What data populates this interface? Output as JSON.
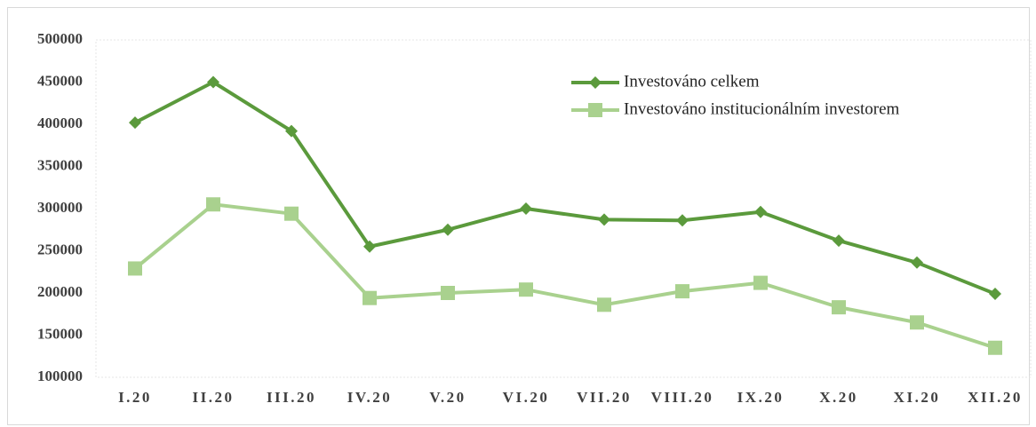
{
  "chart_data": {
    "type": "line",
    "categories": [
      "I.20",
      "II.20",
      "III.20",
      "IV.20",
      "V.20",
      "VI.20",
      "VII.20",
      "VIII.20",
      "IX.20",
      "X.20",
      "XI.20",
      "XII.20"
    ],
    "series": [
      {
        "name": "Investováno celkem",
        "color": "#5b9a3c",
        "marker": "diamond",
        "values": [
          402000,
          450000,
          392000,
          255000,
          275000,
          300000,
          287000,
          286000,
          296000,
          262000,
          236000,
          199000
        ]
      },
      {
        "name": "Investováno institucionálním investorem",
        "color": "#a9d18e",
        "marker": "square",
        "values": [
          229000,
          305000,
          294000,
          194000,
          200000,
          204000,
          186000,
          202000,
          212000,
          183000,
          165000,
          135000
        ]
      }
    ],
    "ylim": [
      100000,
      500000
    ],
    "yticks": [
      100000,
      150000,
      200000,
      250000,
      300000,
      350000,
      400000,
      450000,
      500000
    ],
    "grid": false,
    "legend": "upper right"
  }
}
